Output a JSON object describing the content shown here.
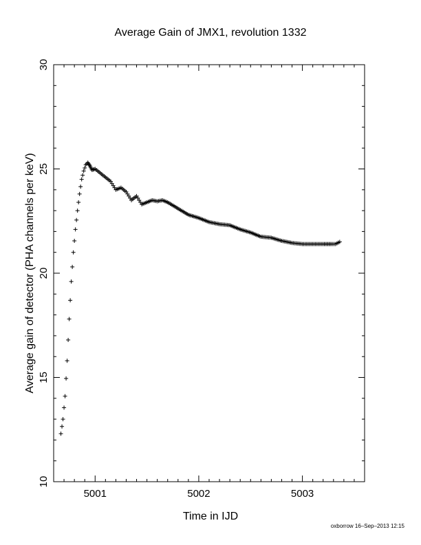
{
  "chart_data": {
    "type": "scatter",
    "title": "Average Gain of JMX1, revolution 1332",
    "xlabel": "Time in IJD",
    "ylabel": "Average gain of detector (PHA channels per keV)",
    "xlim": [
      5000.6,
      5003.6
    ],
    "ylim": [
      10,
      30
    ],
    "x_ticks": [
      5001,
      5002,
      5003
    ],
    "y_ticks": [
      10,
      15,
      20,
      25,
      30
    ],
    "marker": "plus",
    "grid": false,
    "series": [
      {
        "points": [
          [
            5000.67,
            12.3
          ],
          [
            5000.69,
            13.0
          ],
          [
            5000.71,
            14.1
          ],
          [
            5000.73,
            15.8
          ],
          [
            5000.75,
            17.8
          ],
          [
            5000.77,
            19.6
          ],
          [
            5000.79,
            21.0
          ],
          [
            5000.81,
            22.1
          ],
          [
            5000.83,
            23.0
          ],
          [
            5000.85,
            23.8
          ],
          [
            5000.87,
            24.5
          ],
          [
            5000.89,
            24.9
          ],
          [
            5000.91,
            25.2
          ],
          [
            5000.93,
            25.3
          ],
          [
            5000.95,
            25.15
          ],
          [
            5000.97,
            24.95
          ],
          [
            5001.0,
            25.0
          ],
          [
            5001.05,
            24.8
          ],
          [
            5001.1,
            24.6
          ],
          [
            5001.15,
            24.4
          ],
          [
            5001.2,
            24.0
          ],
          [
            5001.25,
            24.1
          ],
          [
            5001.3,
            23.9
          ],
          [
            5001.35,
            23.5
          ],
          [
            5001.4,
            23.7
          ],
          [
            5001.45,
            23.3
          ],
          [
            5001.5,
            23.4
          ],
          [
            5001.55,
            23.5
          ],
          [
            5001.6,
            23.45
          ],
          [
            5001.65,
            23.5
          ],
          [
            5001.7,
            23.4
          ],
          [
            5001.8,
            23.1
          ],
          [
            5001.9,
            22.8
          ],
          [
            5002.0,
            22.65
          ],
          [
            5002.1,
            22.45
          ],
          [
            5002.2,
            22.35
          ],
          [
            5002.3,
            22.3
          ],
          [
            5002.4,
            22.1
          ],
          [
            5002.5,
            21.95
          ],
          [
            5002.6,
            21.75
          ],
          [
            5002.7,
            21.7
          ],
          [
            5002.8,
            21.55
          ],
          [
            5002.9,
            21.45
          ],
          [
            5003.0,
            21.4
          ],
          [
            5003.1,
            21.4
          ],
          [
            5003.2,
            21.4
          ],
          [
            5003.28,
            21.4
          ],
          [
            5003.32,
            21.4
          ],
          [
            5003.36,
            21.5
          ]
        ]
      }
    ]
  },
  "footer": "oxborrow 16–Sep–2013 12:15"
}
